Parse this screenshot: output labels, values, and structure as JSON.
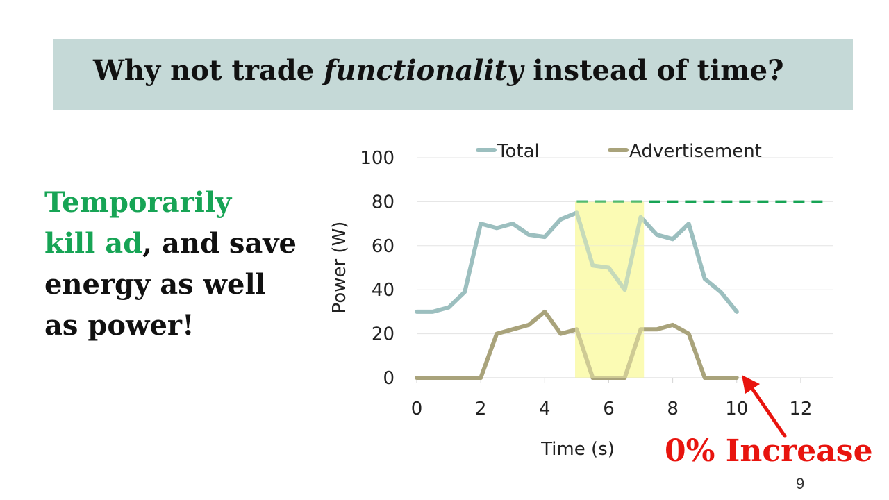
{
  "slide": {
    "title_before": "Why not trade ",
    "title_italic": "functionality",
    "title_after": " instead of time?",
    "side_green_1": "Temporarily",
    "side_green_2": "kill ad",
    "side_rest_1": ", and save",
    "side_rest_2": "energy as well",
    "side_rest_3": "as power!",
    "callout": "0% Increase",
    "page_number": "9"
  },
  "chart_data": {
    "type": "line",
    "xlabel": "Time (s)",
    "ylabel": "Power (W)",
    "xlim": [
      0,
      13
    ],
    "ylim": [
      0,
      100
    ],
    "xticks": [
      0,
      2,
      4,
      6,
      8,
      10,
      12
    ],
    "yticks": [
      0,
      20,
      40,
      60,
      80,
      100
    ],
    "legend_position": "top",
    "grid": "horizontal",
    "series": [
      {
        "name": "Total",
        "color": "#9cbfbf",
        "x": [
          0,
          0.5,
          1,
          1.5,
          2,
          2.5,
          3,
          3.5,
          4,
          4.5,
          5,
          5.5,
          6,
          6.5,
          7,
          7.5,
          8,
          8.5,
          9,
          9.5,
          10
        ],
        "y": [
          30,
          30,
          32,
          39,
          70,
          68,
          70,
          65,
          64,
          72,
          75,
          51,
          50,
          40,
          73,
          65,
          63,
          70,
          45,
          39,
          30
        ]
      },
      {
        "name": "Advertisement",
        "color": "#a9a37b",
        "x": [
          0,
          0.5,
          1,
          1.5,
          2,
          2.5,
          3,
          3.5,
          4,
          4.5,
          5,
          5.5,
          6,
          6.5,
          7,
          7.5,
          8,
          8.5,
          9,
          9.5,
          10
        ],
        "y": [
          0,
          0,
          0,
          0,
          0,
          20,
          22,
          24,
          30,
          20,
          22,
          0,
          0,
          0,
          22,
          22,
          24,
          20,
          0,
          0,
          0
        ]
      }
    ],
    "highlight_x_range": [
      4.95,
      7.1
    ],
    "highlight_color": "#fbfbb4",
    "reference_line": {
      "y": 80,
      "x_start": 5,
      "x_end": 12.7,
      "color": "#17a455",
      "style": "dashed"
    },
    "arrow_color": "#e8140e"
  }
}
